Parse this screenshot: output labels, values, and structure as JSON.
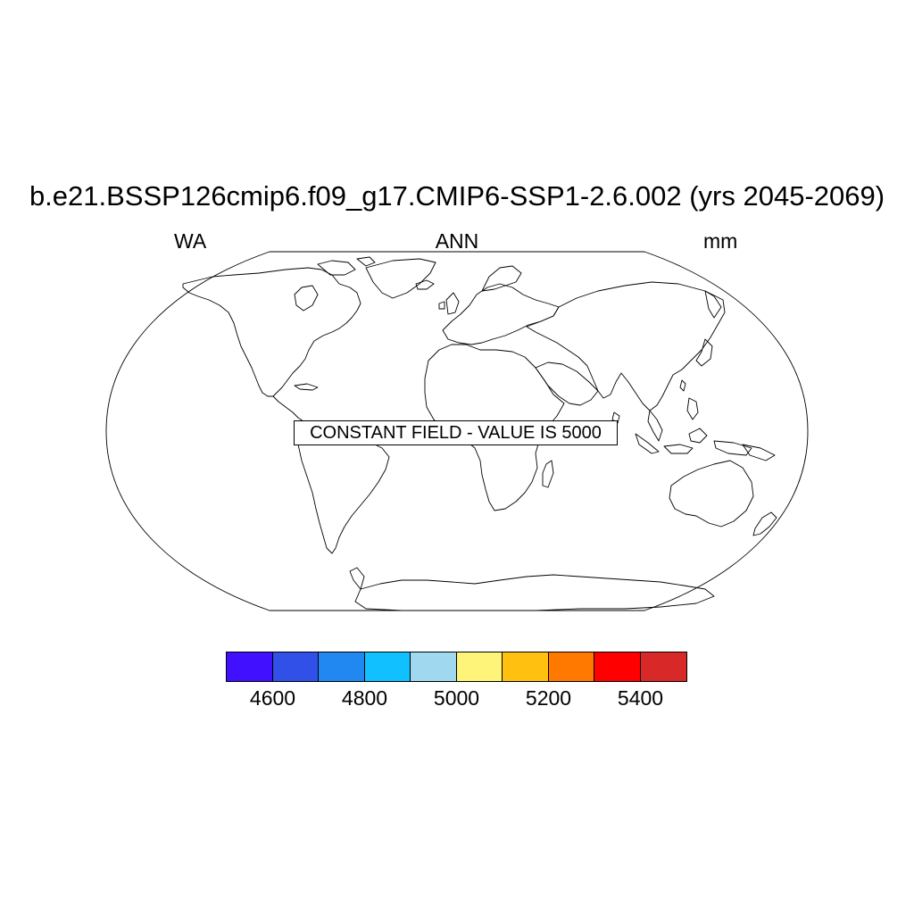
{
  "header": {
    "title": "b.e21.BSSP126cmip6.f09_g17.CMIP6-SSP1-2.6.002 (yrs 2045-2069)",
    "left_label": "WA",
    "center_label": "ANN",
    "right_label": "mm"
  },
  "map": {
    "projection": "Robinson",
    "notice": "CONSTANT FIELD - VALUE IS 5000"
  },
  "colorbar": {
    "colors": [
      "#4010ff",
      "#3050e8",
      "#2088f0",
      "#10c0ff",
      "#a0d8f0",
      "#fff47a",
      "#ffc010",
      "#ff7800",
      "#ff0000",
      "#d82828"
    ],
    "boundaries": [
      4500,
      4600,
      4700,
      4800,
      4900,
      5000,
      5100,
      5200,
      5300,
      5400,
      5500
    ],
    "labels": [
      "4600",
      "4800",
      "5000",
      "5200",
      "5400"
    ]
  }
}
